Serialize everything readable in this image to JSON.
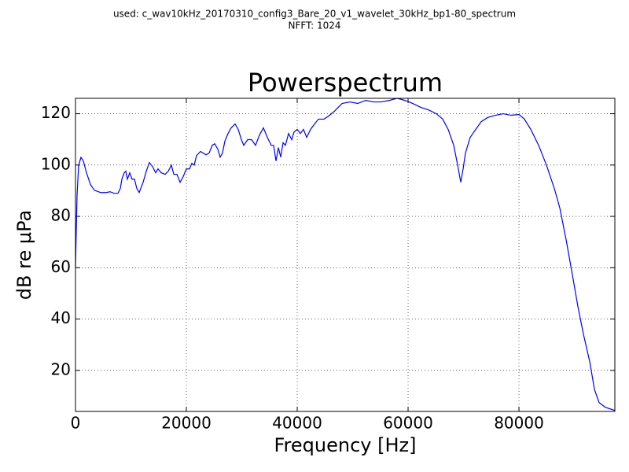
{
  "chart_data": {
    "type": "line",
    "subtitle": [
      "used: c_wav10kHz_20170310_config3_Bare_20_v1_wavelet_30kHz_bp1-80_spectrum",
      "NFFT: 1024"
    ],
    "title": "Powerspectrum",
    "x_label": "Frequency [Hz]",
    "y_label": "dB re μPa",
    "x": [
      0,
      280,
      570,
      990,
      1420,
      1990,
      2700,
      3400,
      4540,
      5530,
      6240,
      6950,
      7660,
      8090,
      8370,
      8800,
      9080,
      9360,
      9790,
      10210,
      10640,
      11060,
      11490,
      12200,
      12770,
      13330,
      13900,
      14470,
      14890,
      15460,
      16170,
      16740,
      17300,
      17730,
      18300,
      18870,
      19430,
      20000,
      20570,
      20990,
      21420,
      21840,
      22550,
      23550,
      24110,
      24680,
      25110,
      25670,
      26100,
      26520,
      26950,
      27520,
      28090,
      28790,
      29360,
      29930,
      30350,
      31060,
      31770,
      32480,
      33190,
      33900,
      34610,
      35320,
      35740,
      36170,
      36600,
      37020,
      37450,
      37870,
      38440,
      39010,
      39430,
      40000,
      40570,
      41130,
      41700,
      42410,
      43120,
      43830,
      44820,
      45670,
      46670,
      48090,
      49500,
      50920,
      52340,
      53760,
      55180,
      56600,
      58010,
      59430,
      60850,
      62270,
      63690,
      65110,
      66240,
      67230,
      68230,
      68940,
      69500,
      69930,
      70350,
      71210,
      72200,
      73190,
      74330,
      75740,
      77160,
      78580,
      80000,
      80990,
      82130,
      83550,
      84960,
      86380,
      87380,
      88510,
      89650,
      90640,
      91630,
      92770,
      93620,
      94470,
      95600,
      97300
    ],
    "series": [
      {
        "color": "#0000ff",
        "values": [
          60.2,
          88,
          100,
          103,
          101.6,
          97,
          92.4,
          90.2,
          89.3,
          89.3,
          89.6,
          89,
          89,
          90.9,
          94.5,
          97,
          97.6,
          94.5,
          97,
          94.5,
          94.5,
          90.9,
          89.3,
          93.3,
          97.6,
          101,
          99.4,
          97,
          98.5,
          97,
          96.4,
          97.6,
          100,
          96.4,
          96.4,
          93.3,
          95.5,
          98.5,
          98.5,
          100.7,
          100,
          103.7,
          105.3,
          104,
          104.7,
          107.7,
          108.3,
          106.2,
          103.1,
          104.7,
          109.3,
          112.3,
          114.5,
          116,
          113.9,
          109.9,
          107.7,
          109.9,
          109.9,
          107.7,
          111.7,
          114.5,
          110.8,
          107.7,
          107.7,
          101.6,
          106.8,
          103.1,
          108.7,
          107.7,
          112.3,
          109.9,
          112.9,
          113.9,
          112.3,
          113.9,
          110.8,
          113.9,
          116,
          117.9,
          117.9,
          119.1,
          120.9,
          124,
          124.6,
          124,
          125.2,
          124.6,
          124.6,
          125.2,
          126,
          125.2,
          124,
          122.5,
          121.5,
          120,
          117.9,
          113.9,
          107.7,
          100,
          93.3,
          98.5,
          104.7,
          110.8,
          113.9,
          116.9,
          118.5,
          119.4,
          120,
          119.4,
          119.7,
          117.9,
          113.9,
          107.7,
          100,
          90.9,
          83.2,
          70.9,
          57.1,
          44.8,
          34.1,
          23.4,
          12.6,
          7.4,
          5.6,
          4.4
        ]
      }
    ],
    "xlim": [
      0,
      97300
    ],
    "xticks": [
      0,
      20000,
      40000,
      60000,
      80000
    ],
    "ylim": [
      4,
      126
    ],
    "yticks": [
      20,
      40,
      60,
      80,
      100,
      120
    ],
    "grid": true
  }
}
